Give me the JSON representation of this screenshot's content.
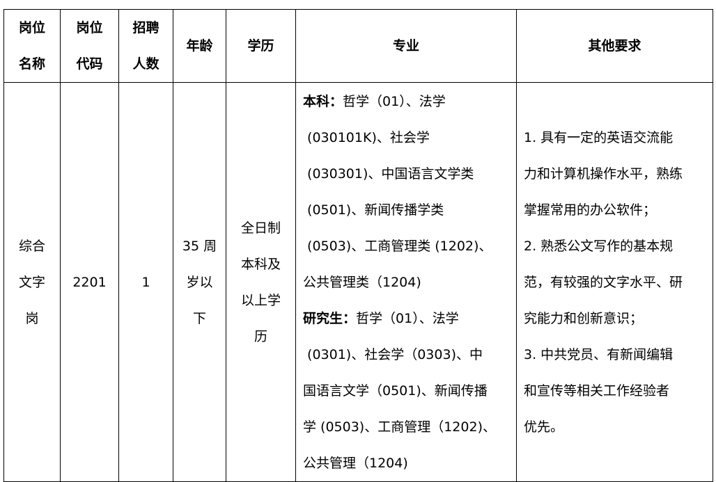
{
  "headers": {
    "name": [
      "岗位",
      "名称"
    ],
    "code": [
      "岗位",
      "代码"
    ],
    "count": [
      "招聘",
      "人数"
    ],
    "age": "年龄",
    "education": "学历",
    "major": "专业",
    "other": "其他要求"
  },
  "row": {
    "name": [
      "综合",
      "文字",
      "岗"
    ],
    "code": "2201",
    "count": "1",
    "age": [
      "35 周",
      "岁以",
      "下"
    ],
    "education": [
      "全日制",
      "本科及",
      "以上学",
      "历"
    ],
    "major": {
      "undergrad_label": "本科：",
      "undergrad_first": "哲学（01）、法学",
      "undergrad_lines": [
        " (030101K)、社会学",
        " (030301)、中国语言文学类",
        " (0501)、新闻传播学类",
        " (0503)、工商管理类 (1202)、",
        "公共管理类（1204)"
      ],
      "grad_label": "研究生：",
      "grad_first": "哲学（01）、法学",
      "grad_lines": [
        " (0301)、社会学（0303)、中",
        "国语言文学（0501)、新闻传播",
        "学 (0503)、工商管理（1202)、",
        "公共管理（1204)"
      ]
    },
    "other": [
      "1. 具有一定的英语交流能",
      "力和计算机操作水平，熟练",
      "掌握常用的办公软件；",
      "2. 熟悉公文写作的基本规",
      "范，有较强的文字水平、研",
      "究能力和创新意识；",
      "3. 中共党员、有新闻编辑",
      "和宣传等相关工作经验者",
      "优先。"
    ]
  }
}
